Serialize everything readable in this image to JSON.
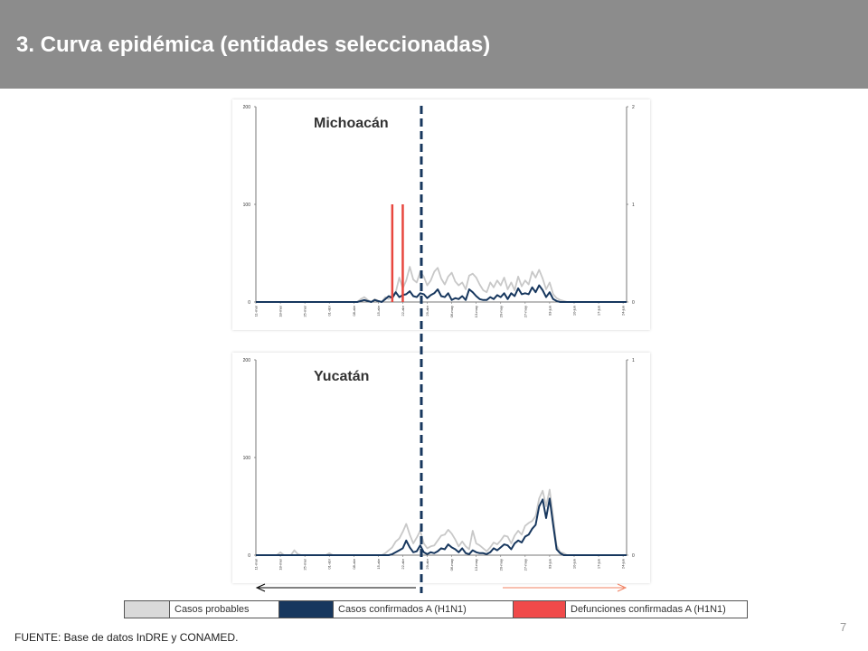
{
  "header": {
    "title": "3. Curva epidémica (entidades seleccionadas)",
    "background": "#8c8c8c"
  },
  "colors": {
    "probables": "#c8c8c8",
    "confirmados": "#17375e",
    "defunciones": "#e8473f",
    "divider": "#17375e"
  },
  "legend": {
    "items": [
      {
        "label": "Casos probables",
        "swatch": "#d9d9d9"
      },
      {
        "label": "Casos confirmados A (H1N1)",
        "swatch": "#17375e"
      },
      {
        "label": "Defunciones confirmadas A (H1N1)",
        "swatch": "#f04a4a"
      }
    ]
  },
  "arrows": {
    "left_color": "#000000",
    "right_color": "#f08060"
  },
  "footer": {
    "source": "FUENTE:  Base de datos InDRE y CONAMED.",
    "page_number": "7"
  },
  "chart_data": [
    {
      "type": "line",
      "title": "Michoacán",
      "x_tick_labels": [
        "11-mar",
        "18-mar",
        "25-mar",
        "01-abr",
        "08-abr",
        "15-abr",
        "22-abr",
        "29-abr",
        "06-may",
        "13-may",
        "20-may",
        "27-may",
        "03-jun",
        "10-jun",
        "17-jun",
        "24-jun"
      ],
      "days": 106,
      "ylim_left": [
        0,
        200
      ],
      "y_ticks_left": [
        "0",
        "100",
        "200"
      ],
      "ylim_right": [
        0,
        2
      ],
      "y_ticks_right": [
        "0",
        "1",
        "2"
      ],
      "series": [
        {
          "key": "probables",
          "axis": "left",
          "points": [
            [
              0,
              0
            ],
            [
              29,
              0
            ],
            [
              30,
              3
            ],
            [
              31,
              5
            ],
            [
              32,
              2
            ],
            [
              33,
              0
            ],
            [
              34,
              3
            ],
            [
              35,
              1
            ],
            [
              36,
              0
            ],
            [
              37,
              5
            ],
            [
              38,
              3
            ],
            [
              39,
              7
            ],
            [
              40,
              10
            ],
            [
              41,
              25
            ],
            [
              42,
              14
            ],
            [
              43,
              22
            ],
            [
              44,
              36
            ],
            [
              45,
              23
            ],
            [
              46,
              20
            ],
            [
              47,
              31
            ],
            [
              48,
              26
            ],
            [
              49,
              17
            ],
            [
              50,
              22
            ],
            [
              51,
              31
            ],
            [
              52,
              35
            ],
            [
              53,
              24
            ],
            [
              54,
              18
            ],
            [
              55,
              26
            ],
            [
              56,
              30
            ],
            [
              57,
              21
            ],
            [
              58,
              17
            ],
            [
              59,
              20
            ],
            [
              60,
              13
            ],
            [
              61,
              27
            ],
            [
              62,
              29
            ],
            [
              63,
              25
            ],
            [
              64,
              18
            ],
            [
              65,
              12
            ],
            [
              66,
              10
            ],
            [
              67,
              20
            ],
            [
              68,
              15
            ],
            [
              69,
              22
            ],
            [
              70,
              17
            ],
            [
              71,
              25
            ],
            [
              72,
              13
            ],
            [
              73,
              20
            ],
            [
              74,
              12
            ],
            [
              75,
              26
            ],
            [
              76,
              16
            ],
            [
              77,
              22
            ],
            [
              78,
              18
            ],
            [
              79,
              31
            ],
            [
              80,
              25
            ],
            [
              81,
              33
            ],
            [
              82,
              24
            ],
            [
              83,
              13
            ],
            [
              84,
              20
            ],
            [
              85,
              8
            ],
            [
              86,
              4
            ],
            [
              87,
              2
            ],
            [
              88,
              1
            ],
            [
              89,
              0
            ],
            [
              106,
              0
            ]
          ]
        },
        {
          "key": "confirmados",
          "axis": "left",
          "points": [
            [
              0,
              0
            ],
            [
              29,
              0
            ],
            [
              30,
              1
            ],
            [
              31,
              2
            ],
            [
              32,
              1
            ],
            [
              33,
              0
            ],
            [
              34,
              2
            ],
            [
              35,
              1
            ],
            [
              36,
              0
            ],
            [
              37,
              3
            ],
            [
              38,
              6
            ],
            [
              39,
              4
            ],
            [
              40,
              10
            ],
            [
              41,
              5
            ],
            [
              42,
              7
            ],
            [
              43,
              8
            ],
            [
              44,
              11
            ],
            [
              45,
              6
            ],
            [
              46,
              5
            ],
            [
              47,
              9
            ],
            [
              48,
              8
            ],
            [
              49,
              4
            ],
            [
              50,
              7
            ],
            [
              51,
              9
            ],
            [
              52,
              13
            ],
            [
              53,
              6
            ],
            [
              54,
              5
            ],
            [
              55,
              9
            ],
            [
              56,
              2
            ],
            [
              57,
              4
            ],
            [
              58,
              3
            ],
            [
              59,
              6
            ],
            [
              60,
              2
            ],
            [
              61,
              13
            ],
            [
              62,
              10
            ],
            [
              63,
              6
            ],
            [
              64,
              3
            ],
            [
              65,
              2
            ],
            [
              66,
              2
            ],
            [
              67,
              5
            ],
            [
              68,
              3
            ],
            [
              69,
              7
            ],
            [
              70,
              5
            ],
            [
              71,
              9
            ],
            [
              72,
              3
            ],
            [
              73,
              9
            ],
            [
              74,
              6
            ],
            [
              75,
              14
            ],
            [
              76,
              8
            ],
            [
              77,
              9
            ],
            [
              78,
              8
            ],
            [
              79,
              15
            ],
            [
              80,
              10
            ],
            [
              81,
              17
            ],
            [
              82,
              12
            ],
            [
              83,
              5
            ],
            [
              84,
              10
            ],
            [
              85,
              3
            ],
            [
              86,
              1
            ],
            [
              87,
              0
            ],
            [
              106,
              0
            ]
          ]
        },
        {
          "key": "defunciones",
          "axis": "right",
          "points": [
            [
              39,
              1
            ],
            [
              42,
              1
            ]
          ]
        }
      ]
    },
    {
      "type": "line",
      "title": "Yucatán",
      "x_tick_labels": [
        "11-mar",
        "18-mar",
        "25-mar",
        "01-abr",
        "08-abr",
        "15-abr",
        "22-abr",
        "29-abr",
        "06-may",
        "13-may",
        "20-may",
        "27-may",
        "03-jun",
        "10-jun",
        "17-jun",
        "24-jun"
      ],
      "days": 106,
      "ylim_left": [
        0,
        200
      ],
      "y_ticks_left": [
        "0",
        "100",
        "200"
      ],
      "ylim_right": [
        0,
        1
      ],
      "y_ticks_right": [
        "0",
        "1"
      ],
      "series": [
        {
          "key": "probables",
          "axis": "left",
          "points": [
            [
              0,
              0
            ],
            [
              6,
              0
            ],
            [
              7,
              3
            ],
            [
              8,
              0
            ],
            [
              10,
              0
            ],
            [
              11,
              5
            ],
            [
              12,
              1
            ],
            [
              13,
              0
            ],
            [
              20,
              0
            ],
            [
              21,
              2
            ],
            [
              22,
              0
            ],
            [
              36,
              0
            ],
            [
              37,
              2
            ],
            [
              38,
              5
            ],
            [
              39,
              8
            ],
            [
              40,
              14
            ],
            [
              41,
              17
            ],
            [
              42,
              24
            ],
            [
              43,
              32
            ],
            [
              44,
              21
            ],
            [
              45,
              12
            ],
            [
              46,
              18
            ],
            [
              47,
              25
            ],
            [
              48,
              12
            ],
            [
              49,
              7
            ],
            [
              50,
              9
            ],
            [
              51,
              10
            ],
            [
              52,
              15
            ],
            [
              53,
              20
            ],
            [
              54,
              21
            ],
            [
              55,
              26
            ],
            [
              56,
              22
            ],
            [
              57,
              16
            ],
            [
              58,
              9
            ],
            [
              59,
              14
            ],
            [
              60,
              9
            ],
            [
              61,
              6
            ],
            [
              62,
              25
            ],
            [
              63,
              12
            ],
            [
              64,
              10
            ],
            [
              65,
              7
            ],
            [
              66,
              4
            ],
            [
              67,
              8
            ],
            [
              68,
              13
            ],
            [
              69,
              11
            ],
            [
              70,
              15
            ],
            [
              71,
              20
            ],
            [
              72,
              19
            ],
            [
              73,
              12
            ],
            [
              74,
              20
            ],
            [
              75,
              25
            ],
            [
              76,
              21
            ],
            [
              77,
              30
            ],
            [
              78,
              33
            ],
            [
              79,
              35
            ],
            [
              80,
              40
            ],
            [
              81,
              58
            ],
            [
              82,
              66
            ],
            [
              83,
              50
            ],
            [
              84,
              67
            ],
            [
              85,
              39
            ],
            [
              86,
              10
            ],
            [
              87,
              3
            ],
            [
              88,
              2
            ],
            [
              89,
              0
            ],
            [
              106,
              0
            ]
          ]
        },
        {
          "key": "confirmados",
          "axis": "left",
          "points": [
            [
              0,
              0
            ],
            [
              38,
              0
            ],
            [
              39,
              1
            ],
            [
              40,
              3
            ],
            [
              41,
              5
            ],
            [
              42,
              7
            ],
            [
              43,
              15
            ],
            [
              44,
              8
            ],
            [
              45,
              3
            ],
            [
              46,
              4
            ],
            [
              47,
              10
            ],
            [
              48,
              3
            ],
            [
              49,
              1
            ],
            [
              50,
              3
            ],
            [
              51,
              2
            ],
            [
              52,
              4
            ],
            [
              53,
              7
            ],
            [
              54,
              6
            ],
            [
              55,
              11
            ],
            [
              56,
              8
            ],
            [
              57,
              6
            ],
            [
              58,
              3
            ],
            [
              59,
              7
            ],
            [
              60,
              2
            ],
            [
              61,
              1
            ],
            [
              62,
              5
            ],
            [
              63,
              3
            ],
            [
              64,
              2
            ],
            [
              65,
              2
            ],
            [
              66,
              1
            ],
            [
              67,
              3
            ],
            [
              68,
              7
            ],
            [
              69,
              5
            ],
            [
              70,
              8
            ],
            [
              71,
              11
            ],
            [
              72,
              10
            ],
            [
              73,
              6
            ],
            [
              74,
              12
            ],
            [
              75,
              15
            ],
            [
              76,
              13
            ],
            [
              77,
              19
            ],
            [
              78,
              21
            ],
            [
              79,
              27
            ],
            [
              80,
              31
            ],
            [
              81,
              50
            ],
            [
              82,
              57
            ],
            [
              83,
              38
            ],
            [
              84,
              58
            ],
            [
              85,
              31
            ],
            [
              86,
              6
            ],
            [
              87,
              2
            ],
            [
              88,
              0
            ],
            [
              106,
              0
            ]
          ]
        },
        {
          "key": "defunciones",
          "axis": "right",
          "points": []
        }
      ]
    }
  ]
}
